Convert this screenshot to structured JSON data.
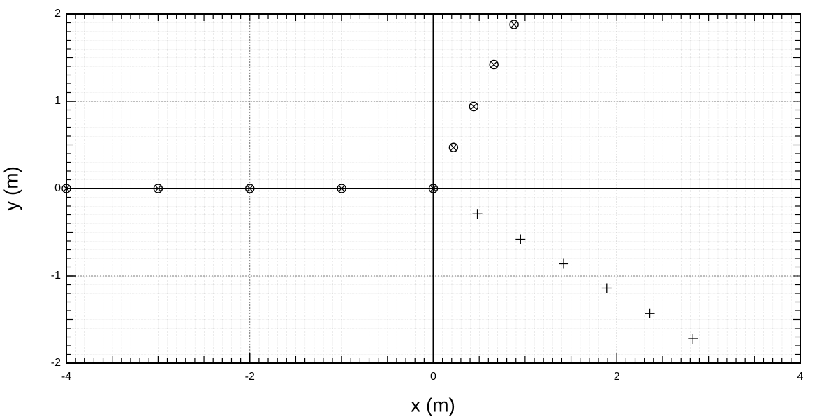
{
  "chart_data": {
    "type": "scatter",
    "x_label": "x (m)",
    "y_label": "y (m)",
    "xlim": [
      -4,
      4
    ],
    "ylim": [
      -2,
      2
    ],
    "xticks": [
      -4,
      -2,
      0,
      2,
      4
    ],
    "yticks": [
      -2,
      -1,
      0,
      1,
      2
    ],
    "grid": true,
    "series": [
      {
        "marker": "circle-x",
        "color": "#000000",
        "x": [
          -4,
          -3,
          -2,
          -1,
          0,
          0.22,
          0.44,
          0.66,
          0.88
        ],
        "values": [
          0,
          0,
          0,
          0,
          0,
          0.47,
          0.94,
          1.42,
          1.88
        ]
      },
      {
        "marker": "plus",
        "color": "#000000",
        "x": [
          0.48,
          0.95,
          1.42,
          1.89,
          2.36,
          2.83
        ],
        "values": [
          -0.29,
          -0.58,
          -0.86,
          -1.14,
          -1.43,
          -1.72
        ]
      }
    ]
  }
}
